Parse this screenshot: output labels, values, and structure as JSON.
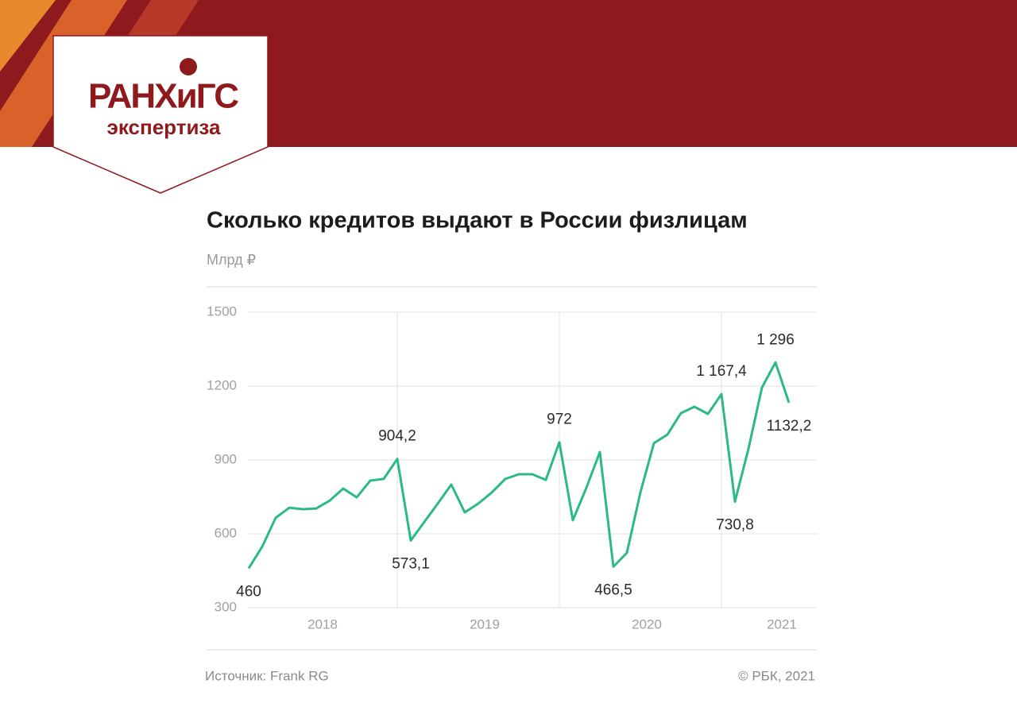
{
  "header": {
    "logo_title": "РАНХиГС",
    "logo_subtitle": "экспертиза"
  },
  "chart_data": {
    "type": "line",
    "title": "Сколько кредитов выдают в России физлицам",
    "subtitle": "Млрд ₽",
    "source": "Источник: Frank RG",
    "credit": "© РБК, 2021",
    "categories": [
      null,
      null,
      null,
      null,
      null,
      "2018",
      null,
      null,
      null,
      null,
      null,
      null,
      null,
      null,
      null,
      null,
      null,
      "2019",
      null,
      null,
      null,
      null,
      null,
      null,
      null,
      null,
      null,
      null,
      null,
      "2020",
      null,
      null,
      null,
      null,
      null,
      null,
      null,
      null,
      null,
      "2021",
      null
    ],
    "series": [
      {
        "name": null,
        "color": "#2bb987",
        "values": [
          460,
          548,
          665,
          706,
          700,
          703,
          735,
          784,
          748,
          816,
          823,
          904.2,
          573.1,
          648,
          723,
          800,
          687,
          723,
          768,
          823,
          842,
          842,
          819,
          972,
          655,
          787,
          932,
          466.5,
          523,
          768,
          968,
          1003,
          1090,
          1116,
          1087,
          1167.4,
          730.8,
          945,
          1194,
          1296,
          1132.2
        ],
        "value_labels": [
          "460",
          null,
          null,
          null,
          null,
          null,
          null,
          null,
          null,
          null,
          null,
          "904,2",
          "573,1",
          null,
          null,
          null,
          null,
          null,
          null,
          null,
          null,
          null,
          null,
          "972",
          null,
          null,
          null,
          "466,5",
          null,
          null,
          null,
          null,
          null,
          null,
          null,
          "1 167,4",
          "730,8",
          null,
          null,
          "1 296",
          "1132,2"
        ]
      }
    ],
    "ylim": [
      300,
      1500
    ],
    "yticks": [
      300,
      600,
      900,
      1200,
      1500
    ],
    "grid": true
  }
}
